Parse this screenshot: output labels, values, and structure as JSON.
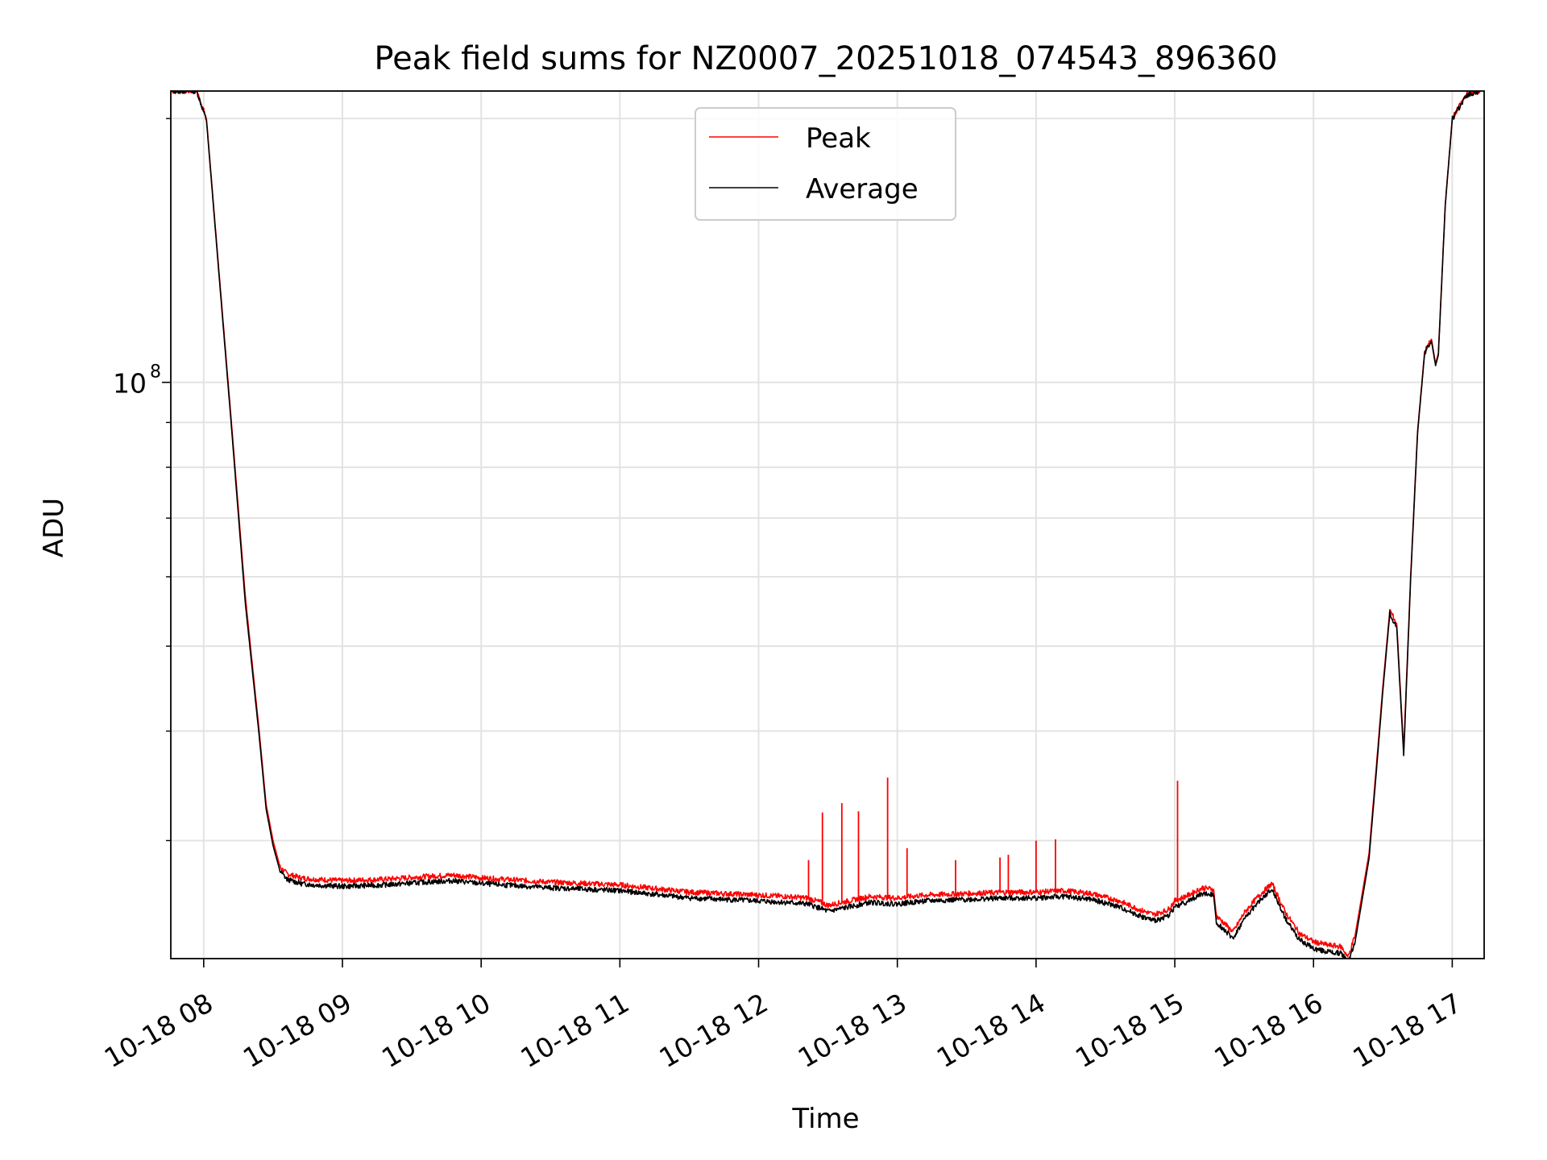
{
  "chart_data": {
    "type": "line",
    "title": "Peak field sums for NZ0007_20251018_074543_896360",
    "xlabel": "Time",
    "ylabel": "ADU",
    "yscale": "log",
    "ylim": [
      22000000,
      215000000
    ],
    "xlim_hours": [
      7.763,
      17.23
    ],
    "grid": true,
    "legend_position": "top-center",
    "x_tick_labels": [
      "10-18 08",
      "10-18 09",
      "10-18 10",
      "10-18 11",
      "10-18 12",
      "10-18 13",
      "10-18 14",
      "10-18 15",
      "10-18 16",
      "10-18 17"
    ],
    "x_tick_hours": [
      8,
      9,
      10,
      11,
      12,
      13,
      14,
      15,
      16,
      17
    ],
    "y_major_tick": {
      "value": 100000000,
      "label_base": "10",
      "label_exp": "8"
    },
    "y_minor_ticks": [
      30000000,
      40000000,
      50000000,
      60000000,
      70000000,
      80000000,
      90000000,
      200000000
    ],
    "series": [
      {
        "name": "Peak",
        "color": "#ff0000",
        "x_hours": [
          7.77,
          7.95,
          8.02,
          8.1,
          8.2,
          8.3,
          8.4,
          8.45,
          8.5,
          8.55,
          8.6,
          8.7,
          8.8,
          9.0,
          9.3,
          9.6,
          9.8,
          10.0,
          10.5,
          11.0,
          11.3,
          11.5,
          12.0,
          12.2,
          12.35,
          12.45,
          12.5,
          12.6,
          12.8,
          13.0,
          13.2,
          13.5,
          13.8,
          14.0,
          14.2,
          14.4,
          14.6,
          14.75,
          14.85,
          14.95,
          15.0,
          15.05,
          15.1,
          15.2,
          15.28,
          15.3,
          15.35,
          15.42,
          15.5,
          15.6,
          15.7,
          15.8,
          15.9,
          16.0,
          16.1,
          16.2,
          16.25,
          16.3,
          16.4,
          16.45,
          16.5,
          16.55,
          16.6,
          16.65,
          16.7,
          16.75,
          16.8,
          16.82,
          16.85,
          16.88,
          16.9,
          16.95,
          17.0,
          17.1,
          17.2
        ],
        "y_values": [
          215000000,
          215000000,
          200000000,
          140000000,
          90000000,
          57000000,
          40000000,
          33000000,
          30000000,
          28000000,
          27500000,
          27200000,
          27100000,
          27000000,
          27100000,
          27300000,
          27400000,
          27200000,
          26900000,
          26700000,
          26400000,
          26200000,
          26000000,
          25900000,
          25800000,
          25500000,
          25300000,
          25500000,
          25900000,
          25800000,
          26000000,
          26100000,
          26200000,
          26200000,
          26300000,
          26100000,
          25600000,
          25000000,
          24700000,
          25000000,
          25600000,
          25800000,
          26000000,
          26500000,
          26400000,
          24600000,
          24200000,
          23600000,
          24800000,
          25900000,
          26800000,
          24800000,
          23500000,
          23000000,
          22800000,
          22700000,
          22100000,
          23400000,
          29000000,
          36000000,
          45000000,
          55000000,
          53000000,
          38000000,
          60000000,
          88000000,
          108000000,
          110000000,
          112000000,
          105000000,
          108000000,
          160000000,
          200000000,
          213000000,
          215000000
        ],
        "spikes": [
          {
            "x_hour": 12.36,
            "value": 28500000
          },
          {
            "x_hour": 12.46,
            "value": 32300000
          },
          {
            "x_hour": 12.6,
            "value": 33100000
          },
          {
            "x_hour": 12.72,
            "value": 32400000
          },
          {
            "x_hour": 12.93,
            "value": 35400000
          },
          {
            "x_hour": 13.07,
            "value": 29400000
          },
          {
            "x_hour": 13.42,
            "value": 28500000
          },
          {
            "x_hour": 13.74,
            "value": 28700000
          },
          {
            "x_hour": 13.8,
            "value": 28900000
          },
          {
            "x_hour": 14.0,
            "value": 30000000
          },
          {
            "x_hour": 14.14,
            "value": 30100000
          },
          {
            "x_hour": 15.02,
            "value": 35100000
          }
        ]
      },
      {
        "name": "Average",
        "color": "#000000",
        "x_hours": [
          7.77,
          7.95,
          8.02,
          8.1,
          8.2,
          8.3,
          8.4,
          8.45,
          8.5,
          8.55,
          8.6,
          8.7,
          8.8,
          9.0,
          9.3,
          9.6,
          9.8,
          10.0,
          10.5,
          11.0,
          11.3,
          11.5,
          12.0,
          12.2,
          12.35,
          12.45,
          12.5,
          12.6,
          12.8,
          13.0,
          13.2,
          13.5,
          13.8,
          14.0,
          14.2,
          14.4,
          14.6,
          14.75,
          14.85,
          14.95,
          15.0,
          15.05,
          15.1,
          15.2,
          15.28,
          15.3,
          15.35,
          15.42,
          15.5,
          15.6,
          15.7,
          15.8,
          15.9,
          16.0,
          16.1,
          16.2,
          16.25,
          16.3,
          16.4,
          16.45,
          16.5,
          16.55,
          16.6,
          16.65,
          16.7,
          16.75,
          16.8,
          16.82,
          16.85,
          16.88,
          16.9,
          16.95,
          17.0,
          17.1,
          17.2
        ],
        "y_values": [
          215000000,
          215000000,
          199000000,
          139000000,
          89000000,
          56000000,
          39500000,
          32600000,
          29600000,
          27700000,
          27100000,
          26800000,
          26700000,
          26600000,
          26700000,
          26900000,
          27000000,
          26800000,
          26500000,
          26300000,
          26000000,
          25800000,
          25600000,
          25500000,
          25400000,
          25100000,
          24900000,
          25100000,
          25500000,
          25400000,
          25600000,
          25700000,
          25800000,
          25800000,
          25900000,
          25700000,
          25200000,
          24600000,
          24300000,
          24600000,
          25200000,
          25400000,
          25600000,
          26100000,
          26000000,
          24200000,
          23800000,
          23200000,
          24400000,
          25500000,
          26400000,
          24400000,
          23100000,
          22600000,
          22400000,
          22300000,
          21800000,
          23000000,
          28600000,
          35500000,
          44500000,
          54500000,
          52500000,
          37500000,
          59500000,
          87500000,
          107500000,
          109500000,
          111500000,
          104500000,
          107500000,
          159500000,
          199500000,
          212500000,
          215000000
        ]
      }
    ]
  }
}
